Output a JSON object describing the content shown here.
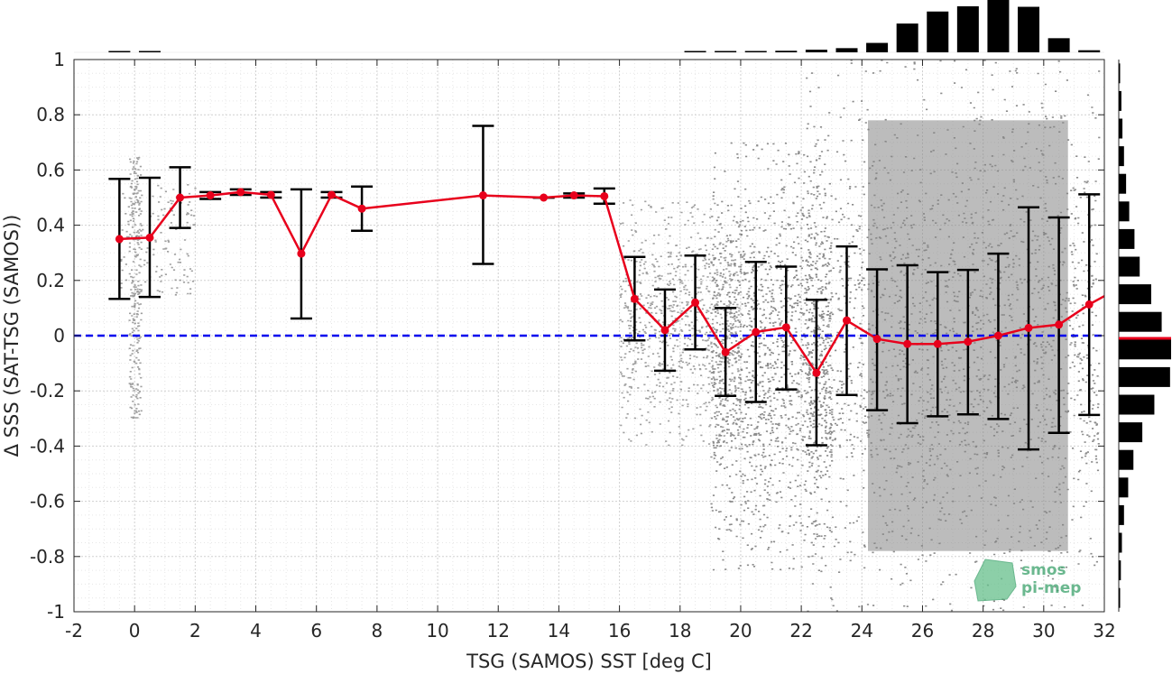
{
  "chart_data": {
    "type": "scatter",
    "title": "",
    "xlabel": "TSG (SAMOS) SST [deg C]",
    "ylabel": "Δ SSS (SAT-TSG (SAMOS))",
    "xlim": [
      -2,
      32
    ],
    "ylim": [
      -1,
      1
    ],
    "x_ticks": [
      -2,
      0,
      2,
      4,
      6,
      8,
      10,
      12,
      14,
      16,
      18,
      20,
      22,
      24,
      26,
      28,
      30,
      32
    ],
    "x_tick_labels": [
      "-2",
      "0",
      "2",
      "4",
      "6",
      "8",
      "10",
      "12",
      "14",
      "16",
      "18",
      "20",
      "22",
      "24",
      "26",
      "28",
      "30",
      "32"
    ],
    "y_ticks": [
      -1,
      -0.8,
      -0.6,
      -0.4,
      -0.2,
      0,
      0.2,
      0.4,
      0.6,
      0.8,
      1
    ],
    "y_tick_labels": [
      "-1",
      "-0.8",
      "-0.6",
      "-0.4",
      "-0.2",
      "0",
      "0.2",
      "0.4",
      "0.6",
      "0.8",
      "1"
    ],
    "grid": "minor dotted",
    "series": [
      {
        "kind": "binned_mean_with_std",
        "color": "#e8001c",
        "errorbar_color": "#000000",
        "x": [
          -0.5,
          0.5,
          1.5,
          2.5,
          3.5,
          4.5,
          5.5,
          6.5,
          7.5,
          11.5,
          13.5,
          14.5,
          15.5,
          16.5,
          17.5,
          18.5,
          19.5,
          20.5,
          21.5,
          22.5,
          23.5,
          24.5,
          25.5,
          26.5,
          27.5,
          28.5,
          29.5,
          30.5,
          31.5
        ],
        "mean": [
          0.35,
          0.355,
          0.5,
          0.508,
          0.52,
          0.51,
          0.297,
          0.51,
          0.46,
          0.508,
          0.5,
          0.508,
          0.505,
          0.133,
          0.02,
          0.12,
          -0.06,
          0.013,
          0.03,
          -0.135,
          0.055,
          -0.012,
          -0.03,
          -0.03,
          -0.022,
          0.0,
          0.028,
          0.04,
          0.113
        ],
        "upper": [
          0.568,
          0.572,
          0.61,
          0.52,
          0.53,
          0.52,
          0.53,
          0.52,
          0.54,
          0.76,
          0.5,
          0.515,
          0.533,
          0.285,
          0.167,
          0.29,
          0.1,
          0.267,
          0.25,
          0.13,
          0.323,
          0.24,
          0.255,
          0.23,
          0.238,
          0.297,
          0.465,
          0.428,
          0.512
        ],
        "lower": [
          0.133,
          0.14,
          0.39,
          0.495,
          0.51,
          0.5,
          0.062,
          0.5,
          0.38,
          0.26,
          0.5,
          0.5,
          0.478,
          -0.017,
          -0.127,
          -0.05,
          -0.218,
          -0.24,
          -0.195,
          -0.397,
          -0.215,
          -0.27,
          -0.317,
          -0.292,
          -0.285,
          -0.302,
          -0.412,
          -0.352,
          -0.287
        ],
        "line_end": {
          "x": 32,
          "y": 0.143
        }
      },
      {
        "kind": "reference_line",
        "y": 0,
        "color": "#0000ee",
        "style": "dashed"
      },
      {
        "kind": "scatter_cloud",
        "color": "#808080",
        "approx_ranges": [
          {
            "x_from": -0.2,
            "x_to": 0.2,
            "y_from": -0.3,
            "y_to": 0.65
          },
          {
            "x_from": -0.5,
            "x_to": 2,
            "y_from": 0.15,
            "y_to": 0.55
          },
          {
            "x_from": 16,
            "x_to": 20,
            "y_from": -0.4,
            "y_to": 0.5
          },
          {
            "x_from": 19,
            "x_to": 23,
            "y_from": -0.85,
            "y_to": 0.7
          },
          {
            "x_from": 22,
            "x_to": 31.8,
            "y_from": -1,
            "y_to": 1
          }
        ]
      }
    ],
    "x_histogram": {
      "position": "top",
      "color": "#000000",
      "bins_x": [
        -0.5,
        0.5,
        18.5,
        19.5,
        20.5,
        21.5,
        22.5,
        23.5,
        24.5,
        25.5,
        26.5,
        27.5,
        28.5,
        29.5,
        30.5,
        31.5
      ],
      "relative_heights": [
        0.01,
        0.01,
        0.01,
        0.01,
        0.02,
        0.03,
        0.05,
        0.08,
        0.18,
        0.55,
        0.78,
        0.88,
        1.0,
        0.87,
        0.27,
        0.04
      ]
    },
    "y_histogram": {
      "position": "right",
      "color": "#000000",
      "bins_y": [
        0.95,
        0.85,
        0.75,
        0.65,
        0.55,
        0.45,
        0.35,
        0.25,
        0.15,
        0.05,
        -0.05,
        -0.15,
        -0.25,
        -0.35,
        -0.45,
        -0.55,
        -0.65,
        -0.75,
        -0.85,
        -0.95
      ],
      "relative_widths": [
        0.02,
        0.05,
        0.07,
        0.1,
        0.14,
        0.2,
        0.3,
        0.4,
        0.62,
        0.82,
        1.0,
        0.98,
        0.68,
        0.45,
        0.28,
        0.18,
        0.1,
        0.06,
        0.04,
        0.02
      ],
      "median_marker_y": -0.01,
      "median_marker_color": "#e8001c"
    },
    "logo_lines": [
      "smos",
      "pi-mep"
    ]
  }
}
